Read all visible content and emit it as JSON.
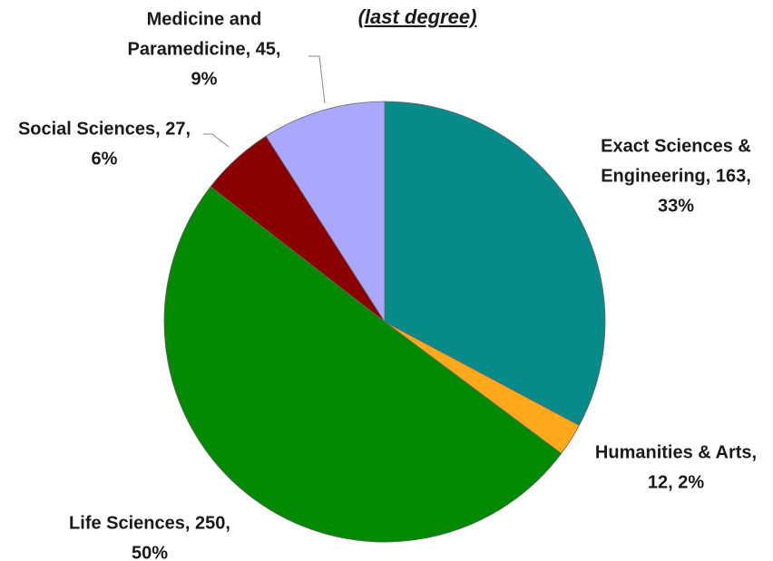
{
  "chart_data": {
    "type": "pie",
    "title": "(last degree)",
    "values": [
      163,
      12,
      250,
      27,
      45
    ],
    "value_labels": [
      [
        "Exact Sciences &",
        "Engineering, 163,",
        "33%"
      ],
      [
        "Humanities & Arts,",
        "12, 2%"
      ],
      [
        "Life Sciences, 250,",
        "50%"
      ],
      [
        "Social Sciences, 27,",
        "6%"
      ],
      [
        "Medicine and",
        "Paramedicine, 45,",
        "9%"
      ]
    ],
    "colors": [
      "#078a8a",
      "#ffa81c",
      "#038a03",
      "#8b0000",
      "#a9a8fd"
    ],
    "start_angle": 0,
    "direction": "clockwise"
  }
}
